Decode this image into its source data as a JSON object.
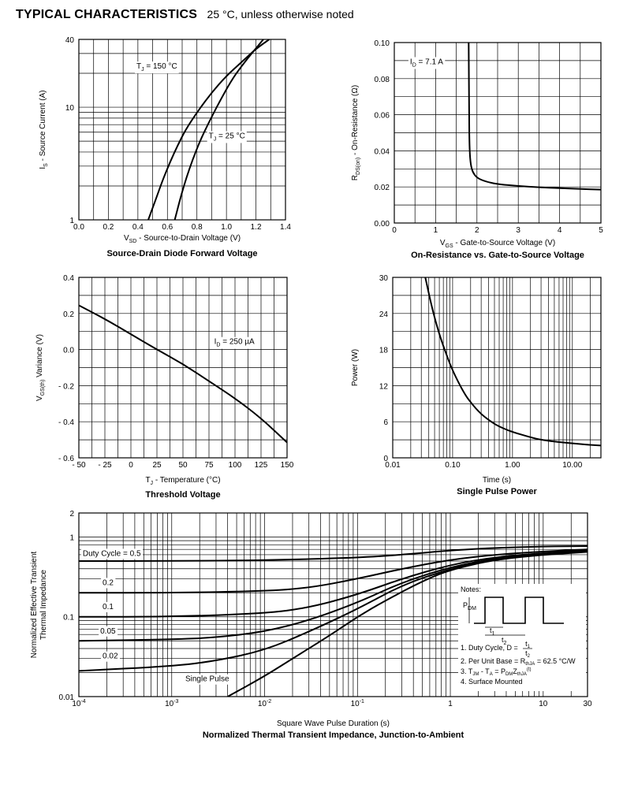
{
  "header": {
    "title": "TYPICAL CHARACTERISTICS",
    "subtitle": "25 °C, unless otherwise noted"
  },
  "chart_data": [
    {
      "id": "source-drain",
      "type": "line",
      "title": "Source-Drain Diode Forward Voltage",
      "xlabel": {
        "main": "V",
        "sub": "SD",
        "rest": " - Source-to-Drain Voltage (V)"
      },
      "ylabel": {
        "main": "I",
        "sub": "S",
        "rest": " - Source Current (A)"
      },
      "xscale": "linear",
      "yscale": "log",
      "xlim": [
        0.0,
        1.4
      ],
      "ylim": [
        1,
        40
      ],
      "xticks": [
        0.0,
        0.2,
        0.4,
        0.6,
        0.8,
        1.0,
        1.2,
        1.4
      ],
      "xtick_labels": [
        "0.0",
        "0.2",
        "0.4",
        "0.6",
        "0.8",
        "1.0",
        "1.2",
        "1.4"
      ],
      "yticks": [
        1,
        10,
        40
      ],
      "ytick_labels": [
        "1",
        "10",
        "40"
      ],
      "series": [
        {
          "name": "T_J = 150 °C",
          "x": [
            0.47,
            0.52,
            0.57,
            0.62,
            0.67,
            0.72,
            0.8,
            0.9,
            1.0,
            1.1,
            1.2,
            1.29
          ],
          "y": [
            1,
            1.5,
            2.3,
            3.3,
            4.6,
            6.2,
            9.0,
            13.5,
            19,
            25,
            33,
            40
          ]
        },
        {
          "name": "T_J = 25 °C",
          "x": [
            0.65,
            0.69,
            0.73,
            0.77,
            0.82,
            0.88,
            0.95,
            1.03,
            1.1,
            1.18,
            1.25
          ],
          "y": [
            1,
            1.6,
            2.4,
            3.4,
            5.0,
            7.3,
            11,
            17,
            23,
            31,
            40
          ]
        }
      ],
      "annotations": [
        {
          "main": "T",
          "sub": "J",
          "rest": " = 150 °C",
          "x": 0.39,
          "y": 22
        },
        {
          "main": "T",
          "sub": "J",
          "rest": " = 25 °C",
          "x": 0.88,
          "y": 5.3
        }
      ]
    },
    {
      "id": "on-resistance",
      "type": "line",
      "title": "On-Resistance vs. Gate-to-Source Voltage",
      "xlabel": {
        "main": "V",
        "sub": "GS",
        "rest": " - Gate-to-Source Voltage (V)"
      },
      "ylabel": {
        "main": "R",
        "sub": "DS(on)",
        "rest": " - On-Resistance (Ω)"
      },
      "xscale": "linear",
      "yscale": "linear",
      "xlim": [
        0,
        5
      ],
      "ylim": [
        0.0,
        0.1
      ],
      "xticks": [
        0,
        1,
        2,
        3,
        4,
        5
      ],
      "xtick_labels": [
        "0",
        "1",
        "2",
        "3",
        "4",
        "5"
      ],
      "yticks": [
        0.0,
        0.02,
        0.04,
        0.06,
        0.08,
        0.1
      ],
      "ytick_labels": [
        "0.00",
        "0.02",
        "0.04",
        "0.06",
        "0.08",
        "0.10"
      ],
      "series": [
        {
          "name": "I_D = 7.1 A",
          "x": [
            1.8,
            1.81,
            1.82,
            1.85,
            1.9,
            2.0,
            2.2,
            2.5,
            3.0,
            3.5,
            4.0,
            4.5,
            5.0
          ],
          "y": [
            0.1,
            0.06,
            0.04,
            0.032,
            0.028,
            0.025,
            0.023,
            0.0215,
            0.0205,
            0.0198,
            0.0193,
            0.0189,
            0.0185
          ]
        }
      ],
      "annotations": [
        {
          "main": "I",
          "sub": "D",
          "rest": " = 7.1 A",
          "x": 0.38,
          "y": 0.088
        }
      ]
    },
    {
      "id": "threshold",
      "type": "line",
      "title": "Threshold Voltage",
      "xlabel": {
        "main": "T",
        "sub": "J",
        "rest": " - Temperature (°C)"
      },
      "ylabel": {
        "main": "V",
        "sub": "GS(th)",
        "rest": " Variance (V)"
      },
      "xscale": "linear",
      "yscale": "linear",
      "xlim": [
        -50,
        150
      ],
      "ylim": [
        -0.6,
        0.4
      ],
      "xticks": [
        -50,
        -25,
        0,
        25,
        50,
        75,
        100,
        125,
        150
      ],
      "xtick_labels": [
        "- 50",
        "- 25",
        "0",
        "25",
        "50",
        "75",
        "100",
        "125",
        "150"
      ],
      "yticks": [
        -0.6,
        -0.4,
        -0.2,
        0.0,
        0.2,
        0.4
      ],
      "ytick_labels": [
        "- 0.6",
        "- 0.4",
        "- 0.2",
        "0.0",
        "0.2",
        "0.4"
      ],
      "series": [
        {
          "name": "I_D = 250 µA",
          "x": [
            -50,
            -25,
            0,
            25,
            50,
            75,
            100,
            125,
            150
          ],
          "y": [
            0.245,
            0.17,
            0.085,
            0.0,
            -0.08,
            -0.175,
            -0.27,
            -0.38,
            -0.515
          ]
        }
      ],
      "annotations": [
        {
          "main": "I",
          "sub": "D",
          "rest": " = 250 µA",
          "x": 80,
          "y": 0.03
        }
      ]
    },
    {
      "id": "single-pulse",
      "type": "line",
      "title": "Single Pulse Power",
      "xlabel": {
        "main": "Time (s)",
        "sub": "",
        "rest": ""
      },
      "ylabel": {
        "main": "Power (W)",
        "sub": "",
        "rest": ""
      },
      "xscale": "log",
      "yscale": "linear",
      "xlim": [
        0.01,
        30
      ],
      "ylim": [
        0,
        30
      ],
      "xticks": [
        0.01,
        0.1,
        1.0,
        10.0
      ],
      "xtick_labels": [
        "0.01",
        "0.10",
        "1.00",
        "10.00"
      ],
      "yticks": [
        0,
        6,
        12,
        18,
        24,
        30
      ],
      "ytick_labels": [
        "0",
        "6",
        "12",
        "18",
        "24",
        "30"
      ],
      "series": [
        {
          "name": "",
          "x": [
            0.035,
            0.045,
            0.06,
            0.08,
            0.1,
            0.15,
            0.2,
            0.3,
            0.5,
            0.7,
            1.0,
            2,
            3,
            5,
            10,
            20,
            30
          ],
          "y": [
            30,
            25,
            20.5,
            17,
            14.5,
            11,
            9.2,
            7.2,
            5.6,
            4.9,
            4.3,
            3.4,
            3.0,
            2.7,
            2.4,
            2.15,
            2.05
          ]
        }
      ],
      "annotations": []
    },
    {
      "id": "thermal-impedance",
      "type": "line",
      "title": "Normalized Thermal Transient Impedance, Junction-to-Ambient",
      "xlabel": {
        "main": "Square Wave Pulse Duration (s)",
        "sub": "",
        "rest": ""
      },
      "ylabel": {
        "main": "Normalized Effective Transient",
        "line2": "Thermal Impedance",
        "sub": "",
        "rest": ""
      },
      "xscale": "log",
      "yscale": "log",
      "xlim": [
        0.0001,
        30
      ],
      "ylim": [
        0.01,
        2
      ],
      "xticks": [
        0.0001,
        0.001,
        0.01,
        0.1,
        1,
        10,
        30
      ],
      "xtick_labels": [
        {
          "base": "10",
          "exp": "-4"
        },
        {
          "base": "10",
          "exp": "-3"
        },
        {
          "base": "10",
          "exp": "-2"
        },
        {
          "base": "10",
          "exp": "-1"
        },
        {
          "base": "1",
          "exp": ""
        },
        {
          "base": "10",
          "exp": ""
        },
        {
          "base": "30",
          "exp": ""
        }
      ],
      "yticks": [
        0.01,
        0.1,
        1,
        2
      ],
      "ytick_labels": [
        "0.01",
        "0.1",
        "1",
        "2"
      ],
      "series": [
        {
          "name": "Duty Cycle, D = 0.5",
          "x": [
            0.0001,
            0.001,
            0.01,
            0.1,
            0.3,
            1,
            3,
            10,
            30
          ],
          "y": [
            0.5,
            0.5,
            0.51,
            0.55,
            0.6,
            0.68,
            0.73,
            0.76,
            0.77
          ]
        },
        {
          "name": "0.2",
          "x": [
            0.0001,
            0.001,
            0.01,
            0.03,
            0.1,
            0.3,
            1,
            3,
            10,
            30
          ],
          "y": [
            0.2,
            0.2,
            0.21,
            0.23,
            0.3,
            0.4,
            0.52,
            0.6,
            0.66,
            0.7
          ]
        },
        {
          "name": "0.1",
          "x": [
            0.0001,
            0.001,
            0.01,
            0.03,
            0.1,
            0.3,
            1,
            3,
            10,
            30
          ],
          "y": [
            0.1,
            0.1,
            0.11,
            0.13,
            0.19,
            0.3,
            0.45,
            0.56,
            0.63,
            0.68
          ]
        },
        {
          "name": "0.05",
          "x": [
            0.0001,
            0.001,
            0.003,
            0.01,
            0.03,
            0.1,
            0.3,
            1,
            3,
            10,
            30
          ],
          "y": [
            0.05,
            0.052,
            0.055,
            0.065,
            0.09,
            0.15,
            0.27,
            0.42,
            0.54,
            0.62,
            0.67
          ]
        },
        {
          "name": "0.02",
          "x": [
            0.0001,
            0.001,
            0.003,
            0.01,
            0.03,
            0.1,
            0.3,
            1,
            3,
            10,
            30
          ],
          "y": [
            0.021,
            0.024,
            0.028,
            0.038,
            0.065,
            0.125,
            0.25,
            0.4,
            0.53,
            0.61,
            0.66
          ]
        },
        {
          "name": "Single Pulse",
          "x": [
            0.004,
            0.01,
            0.02,
            0.05,
            0.1,
            0.2,
            0.5,
            1,
            3,
            10,
            30
          ],
          "y": [
            0.01,
            0.018,
            0.03,
            0.058,
            0.1,
            0.16,
            0.28,
            0.39,
            0.52,
            0.6,
            0.65
          ]
        }
      ],
      "annotations": [
        {
          "main": "Duty Cycle = 0.5",
          "sub": "",
          "rest": "",
          "x": 0.00011,
          "y": 0.58
        },
        {
          "main": "0.2",
          "sub": "",
          "rest": "",
          "x": 0.00018,
          "y": 0.25
        },
        {
          "main": "0.1",
          "sub": "",
          "rest": "",
          "x": 0.00018,
          "y": 0.125
        },
        {
          "main": "0.05",
          "sub": "",
          "rest": "",
          "x": 0.00017,
          "y": 0.062
        },
        {
          "main": "0.02",
          "sub": "",
          "rest": "",
          "x": 0.00018,
          "y": 0.03
        },
        {
          "main": "Single Pulse",
          "sub": "",
          "rest": "",
          "x": 0.0014,
          "y": 0.0155
        }
      ],
      "notes": {
        "heading": "Notes:",
        "pdm": {
          "main": "P",
          "sub": "DM"
        },
        "t1": {
          "main": "t",
          "sub": "1"
        },
        "t2": {
          "main": "t",
          "sub": "2"
        },
        "items": [
          "1. Duty Cycle, D = ",
          "2. Per Unit Base = R",
          "3. T",
          "4. Surface Mounted"
        ],
        "item1_fraction": {
          "num": "t1",
          "den": "t2"
        },
        "item2_sub": "thJA",
        "item2_rest": " = 62.5 °C/W",
        "item3": {
          "jm": "JM",
          "dash": " - T",
          "a": "A",
          "eq": " = P",
          "dm": "DM",
          "z": "Z",
          "thja": "thJA",
          "sup": "(t)"
        }
      }
    }
  ]
}
